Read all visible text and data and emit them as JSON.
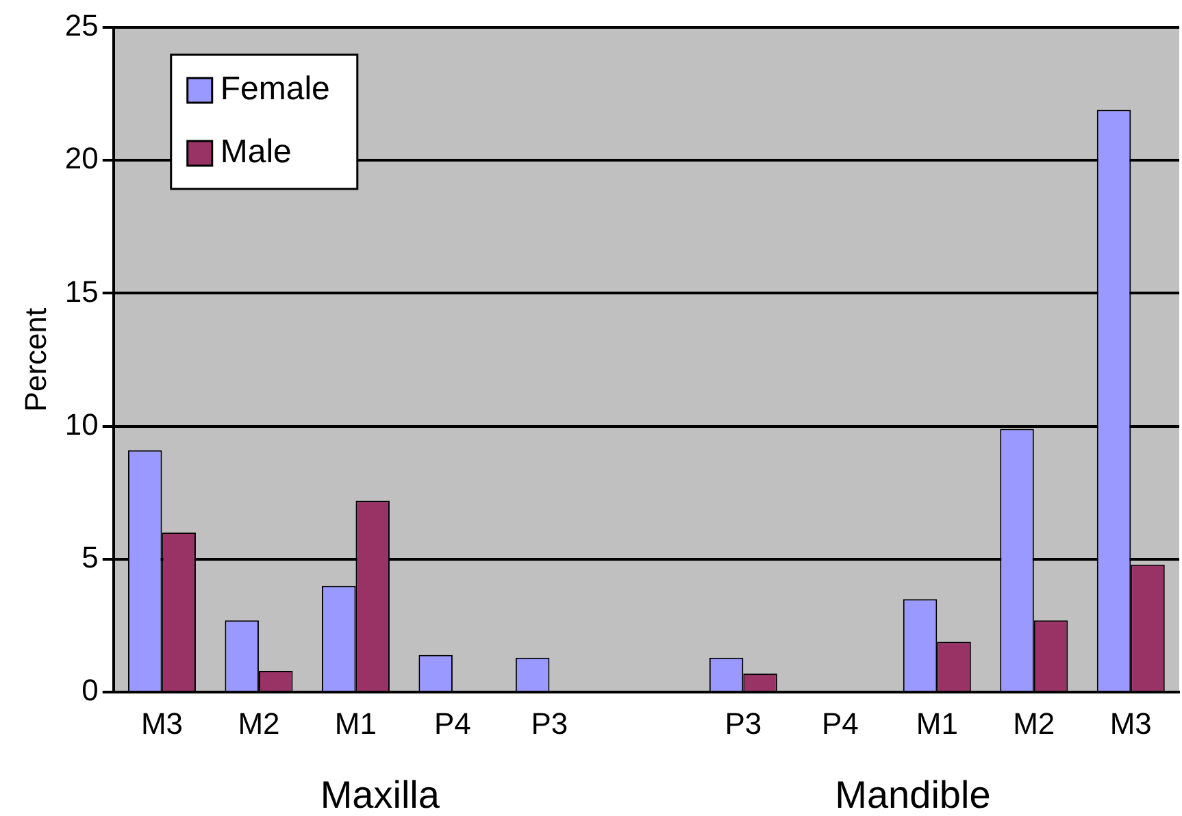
{
  "chart_data": {
    "type": "bar",
    "ylabel": "Percent",
    "categories": [
      "M3",
      "M2",
      "M1",
      "P4",
      "P3",
      null,
      "P3",
      "P4",
      "M1",
      "M2",
      "M3"
    ],
    "series": [
      {
        "name": "Female",
        "color": "#9999ff",
        "values": [
          9.1,
          2.7,
          4.0,
          1.4,
          1.3,
          null,
          1.3,
          0,
          3.5,
          9.9,
          21.9
        ]
      },
      {
        "name": "Male",
        "color": "#993366",
        "values": [
          6.0,
          0.8,
          7.2,
          0,
          0,
          null,
          0.7,
          0,
          1.9,
          2.7,
          4.8
        ]
      }
    ],
    "ylim": [
      0,
      25
    ],
    "yticks": [
      0,
      5,
      10,
      15,
      20,
      25
    ],
    "grid": "y",
    "legend": "top left",
    "annotations": [
      "Maxilla",
      "Mandible"
    ]
  }
}
